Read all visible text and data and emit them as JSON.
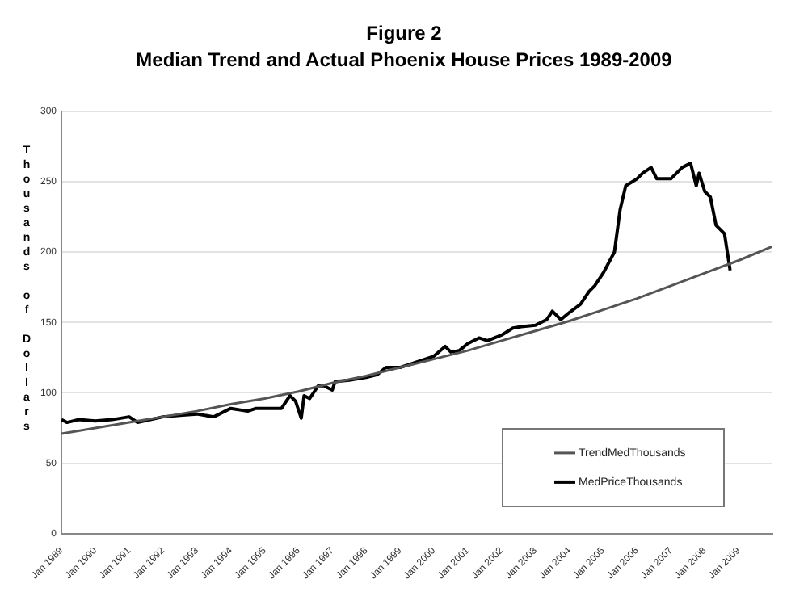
{
  "chart_data": {
    "type": "line",
    "title": "Figure 2",
    "subtitle": "Median Trend and Actual Phoenix House Prices 1989-2009",
    "ylabel": "Thousands of Dollars",
    "xlim": [
      "1989-01",
      "2010-01"
    ],
    "xticks": [
      {
        "value": "1989-01",
        "label": "Jan 1989"
      },
      {
        "value": "1990-01",
        "label": "Jan 1990"
      },
      {
        "value": "1991-01",
        "label": "Jan 1991"
      },
      {
        "value": "1992-01",
        "label": "Jan 1992"
      },
      {
        "value": "1993-01",
        "label": "Jan 1993"
      },
      {
        "value": "1994-01",
        "label": "Jan 1994"
      },
      {
        "value": "1995-01",
        "label": "Jan 1995"
      },
      {
        "value": "1996-01",
        "label": "Jan 1996"
      },
      {
        "value": "1997-01",
        "label": "Jan 1997"
      },
      {
        "value": "1998-01",
        "label": "Jan 1998"
      },
      {
        "value": "1999-01",
        "label": "Jan 1999"
      },
      {
        "value": "2000-01",
        "label": "Jan 2000"
      },
      {
        "value": "2001-01",
        "label": "Jan 2001"
      },
      {
        "value": "2002-01",
        "label": "Jan 2002"
      },
      {
        "value": "2003-01",
        "label": "Jan 2003"
      },
      {
        "value": "2004-01",
        "label": "Jan 2004"
      },
      {
        "value": "2005-01",
        "label": "Jan 2005"
      },
      {
        "value": "2006-01",
        "label": "Jan 2006"
      },
      {
        "value": "2007-01",
        "label": "Jan 2007"
      },
      {
        "value": "2008-01",
        "label": "Jan 2008"
      },
      {
        "value": "2009-01",
        "label": "Jan 2009"
      }
    ],
    "ylim": [
      0,
      300
    ],
    "yticks": [
      0,
      50,
      100,
      150,
      200,
      250,
      300
    ],
    "grid": "y",
    "legend": "bottom right",
    "marker": "none",
    "series": [
      {
        "name": "TrendMedThousands",
        "color": "#555555",
        "x": [
          "1989-01",
          "1990-01",
          "1991-01",
          "1992-01",
          "1993-01",
          "1994-01",
          "1995-01",
          "1996-01",
          "1997-01",
          "1998-01",
          "1999-01",
          "2000-01",
          "2001-01",
          "2002-01",
          "2003-01",
          "2004-01",
          "2005-01",
          "2006-01",
          "2007-01",
          "2008-01",
          "2009-01",
          "2010-01"
        ],
        "values": [
          71,
          75,
          79,
          83,
          87,
          92,
          96,
          101,
          107,
          112,
          118,
          124,
          130,
          137,
          144,
          151,
          159,
          167,
          176,
          185,
          194,
          204
        ]
      },
      {
        "name": "MedPriceThousands",
        "color": "#000000",
        "x": [
          "1989-01",
          "1989-03",
          "1989-07",
          "1990-01",
          "1990-07",
          "1991-01",
          "1991-04",
          "1992-01",
          "1992-07",
          "1993-01",
          "1993-07",
          "1994-01",
          "1994-07",
          "1994-10",
          "1995-01",
          "1995-07",
          "1995-10",
          "1995-12",
          "1996-02",
          "1996-03",
          "1996-05",
          "1996-08",
          "1996-10",
          "1997-01",
          "1997-02",
          "1997-07",
          "1998-01",
          "1998-05",
          "1998-08",
          "1999-01",
          "1999-07",
          "2000-01",
          "2000-05",
          "2000-07",
          "2000-10",
          "2001-01",
          "2001-05",
          "2001-08",
          "2002-01",
          "2002-05",
          "2002-08",
          "2003-01",
          "2003-05",
          "2003-07",
          "2003-10",
          "2004-01",
          "2004-05",
          "2004-08",
          "2004-10",
          "2005-01",
          "2005-05",
          "2005-07",
          "2005-09",
          "2006-01",
          "2006-03",
          "2006-06",
          "2006-08",
          "2007-01",
          "2007-05",
          "2007-08",
          "2007-10",
          "2007-11",
          "2008-01",
          "2008-03",
          "2008-05",
          "2008-08",
          "2008-10"
        ],
        "values": [
          81,
          79,
          81,
          80,
          81,
          83,
          79,
          83,
          84,
          85,
          83,
          89,
          87,
          89,
          89,
          89,
          98,
          94,
          82,
          98,
          96,
          105,
          105,
          102,
          108,
          109,
          111,
          113,
          118,
          118,
          122,
          126,
          133,
          129,
          130,
          135,
          139,
          137,
          141,
          146,
          147,
          148,
          152,
          158,
          152,
          157,
          163,
          172,
          176,
          185,
          200,
          230,
          247,
          252,
          256,
          260,
          252,
          252,
          260,
          263,
          247,
          256,
          243,
          239,
          219,
          213,
          187
        ]
      }
    ]
  }
}
